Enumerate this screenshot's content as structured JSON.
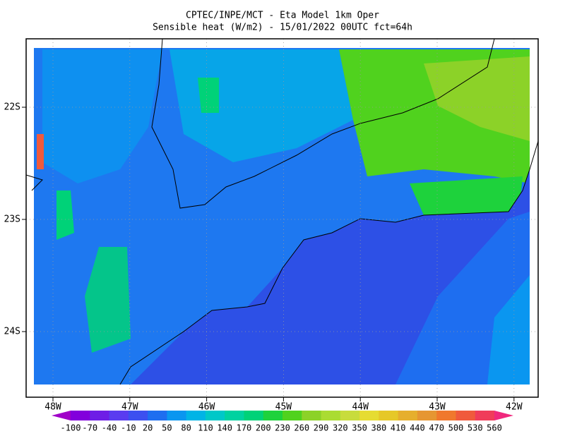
{
  "title": {
    "line1": "CPTEC/INPE/MCT -  Eta Model 1km Oper",
    "line2": "Sensible heat (W/m2) - 15/01/2022 00UTC fct=64h"
  },
  "axes": {
    "lon_labels": [
      "48W",
      "47W",
      "46W",
      "45W",
      "44W",
      "43W",
      "42W"
    ],
    "lat_labels": [
      "22S",
      "23S",
      "24S"
    ]
  },
  "colorbar": {
    "levels": [
      -100,
      -70,
      -40,
      -10,
      20,
      50,
      80,
      110,
      140,
      170,
      200,
      230,
      260,
      290,
      320,
      350,
      380,
      410,
      440,
      470,
      500,
      530,
      560
    ],
    "colors": [
      "#a000c8",
      "#8200dc",
      "#6e1ee6",
      "#5a3cf0",
      "#3c50f0",
      "#1e6ef0",
      "#0a96f0",
      "#00b4e6",
      "#00c8c8",
      "#00d2a0",
      "#00d278",
      "#1ed23c",
      "#50d21e",
      "#8cd228",
      "#aadc32",
      "#c8dc3c",
      "#e6dc32",
      "#e6c828",
      "#e6af2d",
      "#e69632",
      "#f0782d",
      "#f05a3c",
      "#f03c5a",
      "#f0287d"
    ]
  }
}
